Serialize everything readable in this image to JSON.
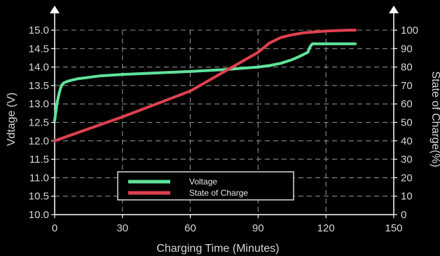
{
  "chart_data": {
    "type": "line",
    "xlabel": "Charging Time (Minutes)",
    "ylabel_left": "Vdtage (V)",
    "ylabel_right": "State of Charge(%)",
    "xlim": [
      0,
      150
    ],
    "ylim_left": [
      10.0,
      15.0
    ],
    "ylim_right": [
      0,
      100
    ],
    "x_ticks": [
      "0",
      "30",
      "60",
      "90",
      "120",
      "150"
    ],
    "y_ticks_left": [
      "10.0",
      "10.5",
      "11.0",
      "11.5",
      "12.0",
      "12.5",
      "13.0",
      "13.5",
      "14.0",
      "14.5",
      "15.0"
    ],
    "y_ticks_right": [
      "0",
      "10",
      "20",
      "30",
      "40",
      "50",
      "60",
      "70",
      "80",
      "90",
      "100"
    ],
    "grid": true,
    "legend_position": "bottom-center",
    "series": [
      {
        "name": "Voltage",
        "axis": "left",
        "color": "#5fe39a",
        "x": [
          0,
          1,
          2,
          3,
          4,
          6,
          10,
          20,
          30,
          45,
          60,
          75,
          90,
          95,
          100,
          105,
          108,
          112,
          113,
          114,
          115,
          117,
          120,
          125,
          130,
          133
        ],
        "y": [
          12.55,
          13.0,
          13.3,
          13.5,
          13.57,
          13.62,
          13.68,
          13.76,
          13.8,
          13.84,
          13.88,
          13.93,
          14.0,
          14.04,
          14.1,
          14.2,
          14.28,
          14.4,
          14.55,
          14.63,
          14.63,
          14.63,
          14.63,
          14.63,
          14.63,
          14.63
        ]
      },
      {
        "name": "State of Charge",
        "axis": "right",
        "color": "#e0404e",
        "x": [
          0,
          30,
          60,
          90,
          95,
          100,
          105,
          110,
          120,
          130,
          133
        ],
        "y": [
          40,
          53,
          67,
          88,
          93,
          96,
          97.5,
          98.5,
          99.5,
          100,
          100
        ]
      }
    ]
  }
}
